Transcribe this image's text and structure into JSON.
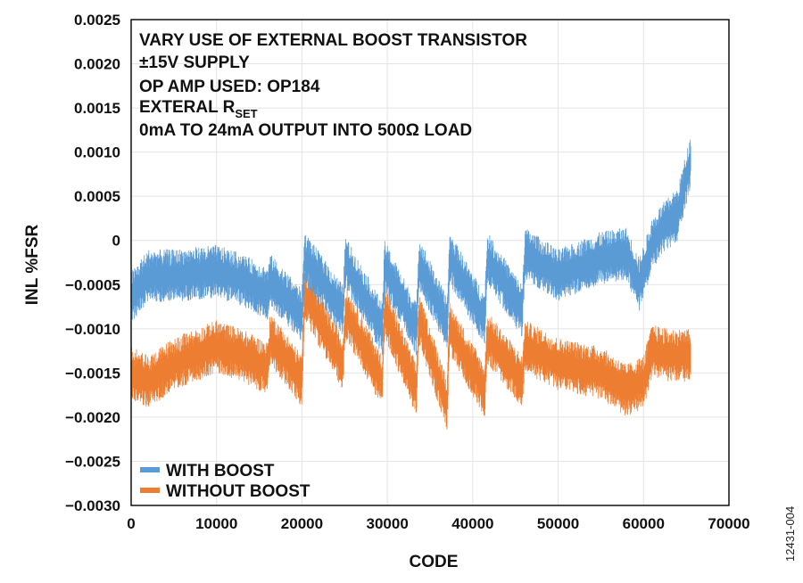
{
  "chart_data": {
    "type": "line",
    "title": "",
    "xlabel": "CODE",
    "ylabel": "INL %FSR",
    "xlim": [
      0,
      70000
    ],
    "ylim": [
      -0.003,
      0.0025
    ],
    "x_ticks": [
      0,
      10000,
      20000,
      30000,
      40000,
      50000,
      60000,
      70000
    ],
    "x_tick_labels": [
      "0",
      "10000",
      "20000",
      "30000",
      "40000",
      "50000",
      "60000",
      "70000"
    ],
    "y_ticks": [
      0.0025,
      0.002,
      0.0015,
      0.001,
      0.0005,
      0,
      -0.0005,
      -0.001,
      -0.0015,
      -0.002,
      -0.0025,
      -0.003
    ],
    "y_tick_labels": [
      "0.0025",
      "0.0020",
      "0.0015",
      "0.0010",
      "0.0005",
      "0",
      "−0.0005",
      "−0.0010",
      "−0.0015",
      "−0.0020",
      "−0.0025",
      "−0.0030"
    ],
    "grid": true,
    "legend_position": "bottom-left",
    "annotations": [
      "VARY USE OF EXTERNAL BOOST TRANSISTOR",
      "±15V SUPPLY",
      "OP AMP USED: OP184"
    ],
    "annotation_rset": {
      "main": "EXTERAL R",
      "sub": "SET"
    },
    "annotation_load": "0mA TO 24mA OUTPUT INTO 500Ω LOAD",
    "figure_id": "12431-004",
    "band_half_width": 0.0003,
    "series": [
      {
        "name": "WITH BOOST",
        "color": "#5b9bd5",
        "x": [
          0,
          2000,
          5000,
          10000,
          13000,
          16000,
          16300,
          20000,
          20300,
          24800,
          25100,
          29400,
          29700,
          33400,
          33700,
          37000,
          37300,
          41400,
          41700,
          45800,
          46100,
          50000,
          55000,
          58000,
          59500,
          60000,
          61000,
          62000,
          63000,
          64000,
          65000,
          65535
        ],
        "y": [
          -0.00065,
          -0.0004,
          -0.0004,
          -0.00035,
          -0.00045,
          -0.0006,
          -0.00045,
          -0.00085,
          -0.0002,
          -0.0008,
          -0.00025,
          -0.001,
          -0.0003,
          -0.001,
          -0.00025,
          -0.00095,
          -0.0002,
          -0.0009,
          -0.0002,
          -0.0008,
          -0.00015,
          -0.0004,
          -0.0002,
          -0.00015,
          -0.0005,
          -0.00035,
          -5e-05,
          0.0001,
          0.0002,
          0.0003,
          0.0007,
          0.0009
        ]
      },
      {
        "name": "WITHOUT BOOST",
        "color": "#ed7d31",
        "x": [
          0,
          2000,
          5000,
          10000,
          13000,
          16000,
          16300,
          20000,
          20300,
          24800,
          25100,
          29400,
          29700,
          33400,
          33700,
          37000,
          37300,
          41400,
          41700,
          45800,
          46100,
          50000,
          55000,
          58000,
          60000,
          61000,
          63000,
          65535
        ],
        "y": [
          -0.0015,
          -0.0016,
          -0.0014,
          -0.0012,
          -0.0013,
          -0.00145,
          -0.0011,
          -0.0016,
          -0.0006,
          -0.0014,
          -0.0008,
          -0.0016,
          -0.0008,
          -0.0017,
          -0.0009,
          -0.00185,
          -0.001,
          -0.0017,
          -0.0011,
          -0.0016,
          -0.0012,
          -0.0014,
          -0.0015,
          -0.0017,
          -0.0016,
          -0.00125,
          -0.0013,
          -0.0013
        ]
      }
    ]
  }
}
